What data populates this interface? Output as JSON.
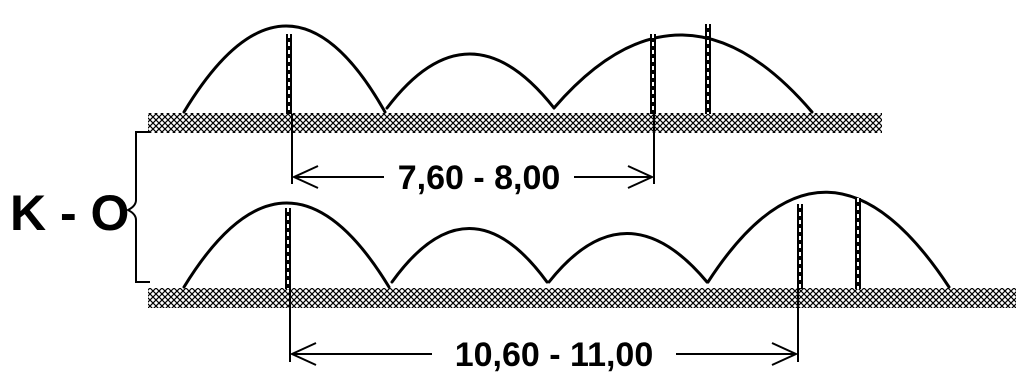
{
  "label_left": "K - O",
  "upper_row": {
    "dimension": "7,60 - 8,00"
  },
  "lower_row": {
    "dimension": "10,60 - 11,00"
  },
  "colors": {
    "ink": "#000000",
    "background": "#ffffff"
  }
}
